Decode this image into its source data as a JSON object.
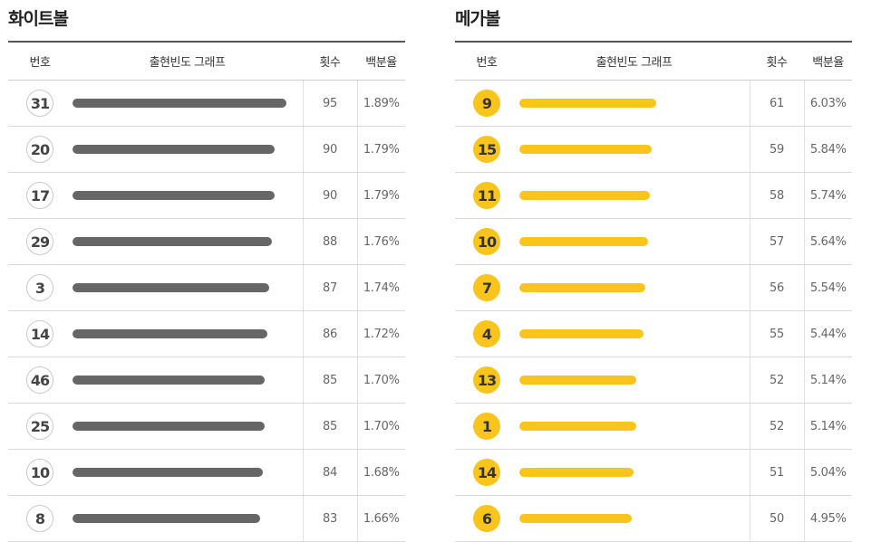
{
  "white": {
    "title": "화이트볼",
    "headers": {
      "number": "번호",
      "graph": "출현빈도 그래프",
      "count": "횟수",
      "percent": "백분율"
    },
    "rows": [
      {
        "number": "31",
        "count": "95",
        "percent": "1.89%",
        "fill": 1.0
      },
      {
        "number": "20",
        "count": "90",
        "percent": "1.79%",
        "fill": 0.947
      },
      {
        "number": "17",
        "count": "90",
        "percent": "1.79%",
        "fill": 0.947
      },
      {
        "number": "29",
        "count": "88",
        "percent": "1.76%",
        "fill": 0.931
      },
      {
        "number": "3",
        "count": "87",
        "percent": "1.74%",
        "fill": 0.921
      },
      {
        "number": "14",
        "count": "86",
        "percent": "1.72%",
        "fill": 0.91
      },
      {
        "number": "46",
        "count": "85",
        "percent": "1.70%",
        "fill": 0.899
      },
      {
        "number": "25",
        "count": "85",
        "percent": "1.70%",
        "fill": 0.899
      },
      {
        "number": "10",
        "count": "84",
        "percent": "1.68%",
        "fill": 0.889
      },
      {
        "number": "8",
        "count": "83",
        "percent": "1.66%",
        "fill": 0.878
      }
    ]
  },
  "mega": {
    "title": "메가볼",
    "headers": {
      "number": "번호",
      "graph": "출현빈도 그래프",
      "count": "횟수",
      "percent": "백분율"
    },
    "rows": [
      {
        "number": "9",
        "count": "61",
        "percent": "6.03%",
        "fill": 0.64
      },
      {
        "number": "15",
        "count": "59",
        "percent": "5.84%",
        "fill": 0.62
      },
      {
        "number": "11",
        "count": "58",
        "percent": "5.74%",
        "fill": 0.61
      },
      {
        "number": "10",
        "count": "57",
        "percent": "5.64%",
        "fill": 0.6
      },
      {
        "number": "7",
        "count": "56",
        "percent": "5.54%",
        "fill": 0.59
      },
      {
        "number": "4",
        "count": "55",
        "percent": "5.44%",
        "fill": 0.58
      },
      {
        "number": "13",
        "count": "52",
        "percent": "5.14%",
        "fill": 0.545
      },
      {
        "number": "1",
        "count": "52",
        "percent": "5.14%",
        "fill": 0.545
      },
      {
        "number": "14",
        "count": "51",
        "percent": "5.04%",
        "fill": 0.535
      },
      {
        "number": "6",
        "count": "50",
        "percent": "4.95%",
        "fill": 0.525
      }
    ]
  },
  "colors": {
    "white_bar": "#666666",
    "mega_bar": "#f9c51c",
    "mega_ball": "#f9c51c"
  }
}
